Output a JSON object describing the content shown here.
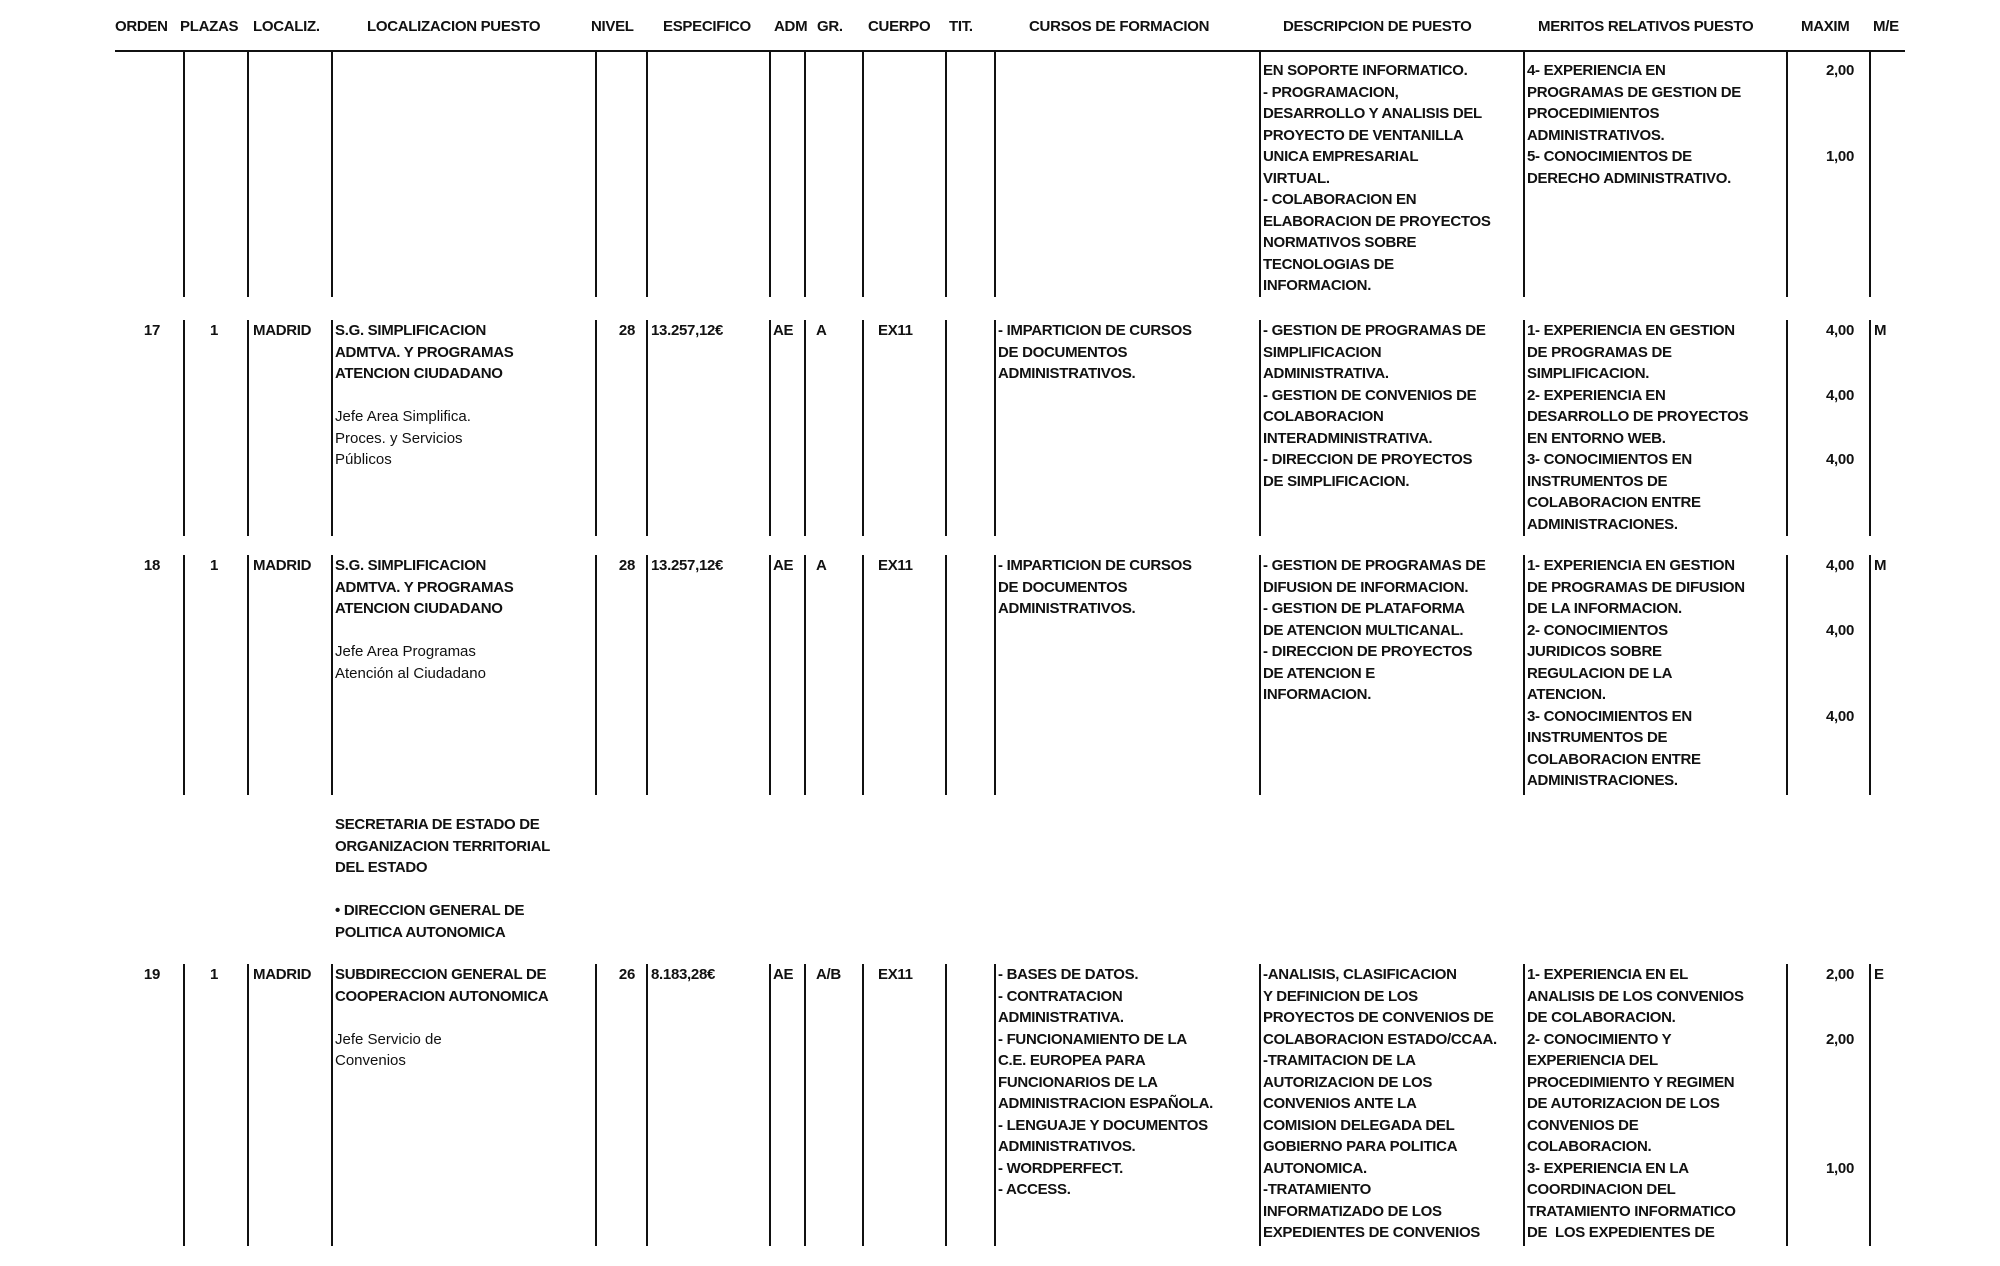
{
  "header": [
    "ORDEN",
    "PLAZAS",
    "LOCALIZ.",
    "LOCALIZACION PUESTO",
    "NIVEL",
    "ESPECIFICO",
    "ADM",
    "GR.",
    "CUERPO",
    "TIT.",
    "CURSOS DE FORMACION",
    "DESCRIPCION DE PUESTO",
    "MERITOS RELATIVOS PUESTO",
    "MAXIM",
    "M/E"
  ],
  "rows": [
    {
      "orden": "",
      "plazas": "",
      "localiz": "",
      "localizacion": [],
      "puesto": [],
      "nivel": "",
      "especifico": "",
      "adm": "",
      "gr": "",
      "cuerpo": "",
      "tit": "",
      "cursos": [],
      "descripcion": [
        "EN SOPORTE INFORMATICO.",
        "- PROGRAMACION,",
        "DESARROLLO Y ANALISIS DEL",
        "PROYECTO DE VENTANILLA",
        "UNICA EMPRESARIAL",
        "VIRTUAL.",
        "- COLABORACION EN",
        "ELABORACION DE PROYECTOS",
        "NORMATIVOS SOBRE",
        "TECNOLOGIAS DE",
        "INFORMACION."
      ],
      "meritos": [
        {
          "lines": [
            "4- EXPERIENCIA EN",
            "PROGRAMAS DE GESTION DE",
            "PROCEDIMIENTOS",
            "ADMINISTRATIVOS."
          ],
          "maxim": "2,00"
        },
        {
          "lines": [
            "5- CONOCIMIENTOS DE",
            "DERECHO ADMINISTRATIVO."
          ],
          "maxim": "1,00"
        }
      ],
      "me": ""
    },
    {
      "orden": "17",
      "plazas": "1",
      "localiz": "MADRID",
      "localizacion": [
        "S.G. SIMPLIFICACION",
        "ADMTVA. Y PROGRAMAS",
        "ATENCION CIUDADANO"
      ],
      "puesto": [
        "Jefe Area Simplifica.",
        "Proces. y Servicios",
        "Públicos"
      ],
      "nivel": "28",
      "especifico": "13.257,12€",
      "adm": "AE",
      "gr": "A",
      "cuerpo": "EX11",
      "tit": "",
      "cursos": [
        "- IMPARTICION DE CURSOS",
        "DE DOCUMENTOS",
        "ADMINISTRATIVOS."
      ],
      "descripcion": [
        "- GESTION DE PROGRAMAS DE",
        "SIMPLIFICACION",
        "ADMINISTRATIVA.",
        "- GESTION DE CONVENIOS DE",
        "COLABORACION",
        "INTERADMINISTRATIVA.",
        "- DIRECCION DE PROYECTOS",
        "DE SIMPLIFICACION."
      ],
      "meritos": [
        {
          "lines": [
            "1- EXPERIENCIA EN GESTION",
            "DE PROGRAMAS DE",
            "SIMPLIFICACION."
          ],
          "maxim": "4,00"
        },
        {
          "lines": [
            "2- EXPERIENCIA EN",
            "DESARROLLO DE PROYECTOS",
            "EN ENTORNO WEB."
          ],
          "maxim": "4,00"
        },
        {
          "lines": [
            "3- CONOCIMIENTOS EN",
            "INSTRUMENTOS DE",
            "COLABORACION ENTRE",
            "ADMINISTRACIONES."
          ],
          "maxim": "4,00"
        }
      ],
      "me": "M"
    },
    {
      "orden": "18",
      "plazas": "1",
      "localiz": "MADRID",
      "localizacion": [
        "S.G. SIMPLIFICACION",
        "ADMTVA. Y PROGRAMAS",
        "ATENCION CIUDADANO"
      ],
      "puesto": [
        "Jefe Area Programas",
        "Atención al Ciudadano"
      ],
      "nivel": "28",
      "especifico": "13.257,12€",
      "adm": "AE",
      "gr": "A",
      "cuerpo": "EX11",
      "tit": "",
      "cursos": [
        "- IMPARTICION DE CURSOS",
        "DE DOCUMENTOS",
        "ADMINISTRATIVOS."
      ],
      "descripcion": [
        "- GESTION DE PROGRAMAS DE",
        "DIFUSION DE INFORMACION.",
        "- GESTION DE PLATAFORMA",
        "DE ATENCION MULTICANAL.",
        "- DIRECCION DE PROYECTOS",
        "DE ATENCION E",
        "INFORMACION."
      ],
      "meritos": [
        {
          "lines": [
            "1- EXPERIENCIA EN GESTION",
            "DE PROGRAMAS DE DIFUSION",
            "DE LA INFORMACION."
          ],
          "maxim": "4,00"
        },
        {
          "lines": [
            "2- CONOCIMIENTOS",
            "JURIDICOS SOBRE",
            "REGULACION DE LA",
            "ATENCION."
          ],
          "maxim": "4,00"
        },
        {
          "lines": [
            "3- CONOCIMIENTOS EN",
            "INSTRUMENTOS DE",
            "COLABORACION ENTRE",
            "ADMINISTRACIONES."
          ],
          "maxim": "4,00"
        }
      ],
      "me": "M"
    },
    {
      "orden": "19",
      "plazas": "1",
      "localiz": "MADRID",
      "localizacion": [
        "SUBDIRECCION GENERAL DE",
        "COOPERACION AUTONOMICA"
      ],
      "puesto": [
        "Jefe Servicio de",
        "Convenios"
      ],
      "nivel": "26",
      "especifico": "8.183,28€",
      "adm": "AE",
      "gr": "A/B",
      "cuerpo": "EX11",
      "tit": "",
      "cursos": [
        "- BASES DE DATOS.",
        "- CONTRATACION",
        "ADMINISTRATIVA.",
        "- FUNCIONAMIENTO DE LA",
        "C.E. EUROPEA PARA",
        "FUNCIONARIOS DE LA",
        "ADMINISTRACION ESPAÑOLA.",
        "- LENGUAJE Y DOCUMENTOS",
        "ADMINISTRATIVOS.",
        "- WORDPERFECT.",
        "- ACCESS."
      ],
      "descripcion": [
        "-ANALISIS, CLASIFICACION",
        "Y DEFINICION DE LOS",
        "PROYECTOS DE CONVENIOS DE",
        "COLABORACION ESTADO/CCAA.",
        "-TRAMITACION DE LA",
        "AUTORIZACION DE LOS",
        "CONVENIOS ANTE LA",
        "COMISION DELEGADA DEL",
        "GOBIERNO PARA POLITICA",
        "AUTONOMICA.",
        "-TRATAMIENTO",
        "INFORMATIZADO DE LOS",
        "EXPEDIENTES DE CONVENIOS"
      ],
      "meritos": [
        {
          "lines": [
            "1- EXPERIENCIA EN EL",
            "ANALISIS DE LOS CONVENIOS",
            "DE COLABORACION."
          ],
          "maxim": "2,00"
        },
        {
          "lines": [
            "2- CONOCIMIENTO Y",
            "EXPERIENCIA DEL",
            "PROCEDIMIENTO Y REGIMEN",
            "DE AUTORIZACION DE LOS",
            "CONVENIOS DE",
            "COLABORACION."
          ],
          "maxim": "2,00"
        },
        {
          "lines": [
            "3- EXPERIENCIA EN LA",
            "COORDINACION DEL",
            "TRATAMIENTO INFORMATICO",
            "DE  LOS EXPEDIENTES DE"
          ],
          "maxim": "1,00"
        }
      ],
      "me": "E"
    }
  ],
  "section": [
    "SECRETARIA DE ESTADO DE",
    "ORGANIZACION TERRITORIAL",
    "DEL ESTADO",
    "",
    "• DIRECCION GENERAL DE",
    "POLITICA AUTONOMICA"
  ]
}
